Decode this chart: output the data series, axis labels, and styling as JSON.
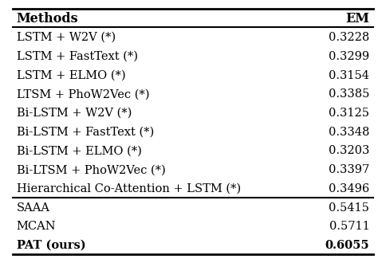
{
  "methods": [
    "LSTM + W2V (*)",
    "LSTM + FastText (*)",
    "LSTM + ELMO (*)",
    "LTSM + PhoW2Vec (*)",
    "Bi-LSTM + W2V (*)",
    "Bi-LSTM + FastText (*)",
    "Bi-LSTM + ELMO (*)",
    "Bi-LTSM + PhoW2Vec (*)",
    "Hierarchical Co-Attention + LSTM (*)",
    "SAAA",
    "MCAN",
    "PAT (ours)"
  ],
  "em_values": [
    "0.3228",
    "0.3299",
    "0.3154",
    "0.3385",
    "0.3125",
    "0.3348",
    "0.3203",
    "0.3397",
    "0.3496",
    "0.5415",
    "0.5711",
    "0.6055"
  ],
  "bold_rows": [
    11
  ],
  "header_methods": "Methods",
  "header_em": "EM",
  "separator_after": [
    8
  ],
  "bg_color": "white",
  "font_size": 10.5,
  "header_font_size": 11.5
}
